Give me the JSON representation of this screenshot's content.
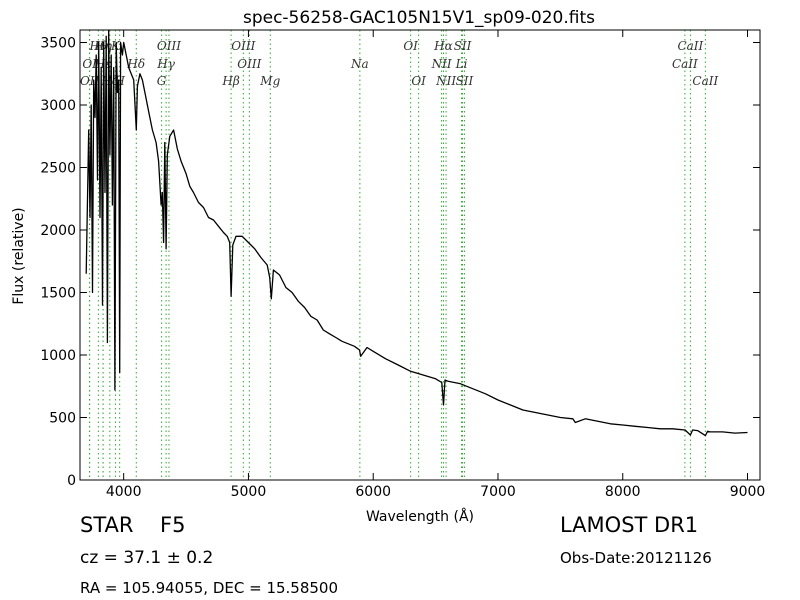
{
  "chart_data": {
    "type": "line",
    "title": "spec-56258-GAC105N15V1_sp09-020.fits",
    "xlabel": "Wavelength (Å)",
    "ylabel": "Flux (relative)",
    "xlim": [
      3650,
      9100
    ],
    "ylim": [
      0,
      3600
    ],
    "xticks": [
      4000,
      5000,
      6000,
      7000,
      8000,
      9000
    ],
    "yticks": [
      0,
      500,
      1000,
      1500,
      2000,
      2500,
      3000,
      3500
    ],
    "grid": false,
    "line_color": "#000000",
    "marker_color": "#33aa33",
    "series": [
      {
        "x": [
          3700,
          3720,
          3730,
          3740,
          3750,
          3760,
          3770,
          3780,
          3790,
          3800,
          3810,
          3820,
          3830,
          3840,
          3850,
          3860,
          3870,
          3880,
          3890,
          3900,
          3910,
          3920,
          3930,
          3940,
          3950,
          3960,
          3968,
          3975,
          3990,
          4000,
          4020,
          4040,
          4060,
          4080,
          4101,
          4110,
          4130,
          4150,
          4170,
          4200,
          4230,
          4260,
          4280,
          4300,
          4310,
          4320,
          4330,
          4340,
          4350,
          4370,
          4400,
          4430,
          4460,
          4500,
          4530,
          4560,
          4600,
          4640,
          4680,
          4720,
          4760,
          4800,
          4830,
          4850,
          4861,
          4875,
          4900,
          4950,
          5000,
          5050,
          5100,
          5150,
          5170,
          5183,
          5200,
          5250,
          5300,
          5350,
          5400,
          5450,
          5500,
          5550,
          5600,
          5650,
          5700,
          5750,
          5800,
          5850,
          5890,
          5900,
          5950,
          6000,
          6100,
          6200,
          6300,
          6400,
          6500,
          6550,
          6563,
          6575,
          6600,
          6700,
          6800,
          6900,
          7000,
          7100,
          7200,
          7300,
          7400,
          7500,
          7600,
          7620,
          7700,
          7800,
          7900,
          8000,
          8100,
          8200,
          8300,
          8400,
          8500,
          8542,
          8560,
          8600,
          8662,
          8680,
          8700,
          8800,
          8900,
          9000
        ],
        "y": [
          1650,
          2800,
          2100,
          3000,
          1500,
          3200,
          2900,
          3400,
          2400,
          3500,
          2100,
          3300,
          1400,
          3500,
          2300,
          3550,
          1100,
          3600,
          2600,
          3400,
          2200,
          3300,
          720,
          3500,
          3100,
          3200,
          860,
          3500,
          3400,
          3500,
          3400,
          3300,
          3250,
          3200,
          2800,
          3150,
          3250,
          3200,
          3100,
          2950,
          2800,
          2700,
          2550,
          2200,
          2300,
          1900,
          2700,
          1850,
          2600,
          2750,
          2800,
          2650,
          2550,
          2450,
          2350,
          2300,
          2220,
          2180,
          2100,
          2080,
          2030,
          1980,
          1950,
          1900,
          1470,
          1880,
          1950,
          1950,
          1900,
          1850,
          1780,
          1720,
          1620,
          1450,
          1680,
          1640,
          1540,
          1500,
          1430,
          1380,
          1310,
          1280,
          1200,
          1170,
          1140,
          1110,
          1090,
          1070,
          1040,
          990,
          1060,
          1030,
          970,
          920,
          870,
          840,
          810,
          780,
          600,
          800,
          790,
          770,
          730,
          690,
          640,
          600,
          560,
          540,
          520,
          500,
          490,
          460,
          490,
          470,
          450,
          440,
          430,
          420,
          410,
          410,
          400,
          360,
          400,
          395,
          355,
          390,
          385,
          385,
          375,
          380
        ]
      }
    ],
    "lines": [
      {
        "label": "Hθ",
        "x": 3797,
        "row": 1
      },
      {
        "label": "OI",
        "x": 3727,
        "row": 2
      },
      {
        "label": "Hε",
        "x": 3835,
        "row": 2
      },
      {
        "label": "K",
        "x": 3934,
        "row": 1
      },
      {
        "label": "Hη",
        "x": 3835,
        "row": 1
      },
      {
        "label": "OII",
        "x": 3727,
        "row": 3
      },
      {
        "label": "Hζ",
        "x": 3889,
        "row": 3
      },
      {
        "label": "H",
        "x": 3968,
        "row": 3
      },
      {
        "label": "Hδ",
        "x": 4101,
        "row": 2
      },
      {
        "label": "OIII",
        "x": 4363,
        "row": 1
      },
      {
        "label": "Hγ",
        "x": 4340,
        "row": 2
      },
      {
        "label": "G",
        "x": 4304,
        "row": 3
      },
      {
        "label": "OIII",
        "x": 4959,
        "row": 1
      },
      {
        "label": "OIII",
        "x": 5007,
        "row": 2
      },
      {
        "label": "Hβ",
        "x": 4861,
        "row": 3
      },
      {
        "label": "Mg",
        "x": 5175,
        "row": 3
      },
      {
        "label": "Na",
        "x": 5893,
        "row": 2
      },
      {
        "label": "OI",
        "x": 6300,
        "row": 1
      },
      {
        "label": "OI",
        "x": 6364,
        "row": 3
      },
      {
        "label": "Hα",
        "x": 6563,
        "row": 1
      },
      {
        "label": "SII",
        "x": 6716,
        "row": 1
      },
      {
        "label": "NII",
        "x": 6548,
        "row": 2
      },
      {
        "label": "Li",
        "x": 6708,
        "row": 2
      },
      {
        "label": "NII",
        "x": 6584,
        "row": 3
      },
      {
        "label": "SII",
        "x": 6731,
        "row": 3
      },
      {
        "label": "CaII",
        "x": 8542,
        "row": 1
      },
      {
        "label": "CaII",
        "x": 8498,
        "row": 2
      },
      {
        "label": "CaII",
        "x": 8662,
        "row": 3
      }
    ]
  },
  "info": {
    "obj_class": "STAR",
    "subclass": "F5",
    "redshift": "cz = 37.1  ± 0.2",
    "survey": "LAMOST DR1",
    "obs_date": "Obs-Date:20121126",
    "coords": "RA = 105.94055, DEC = 15.58500"
  }
}
